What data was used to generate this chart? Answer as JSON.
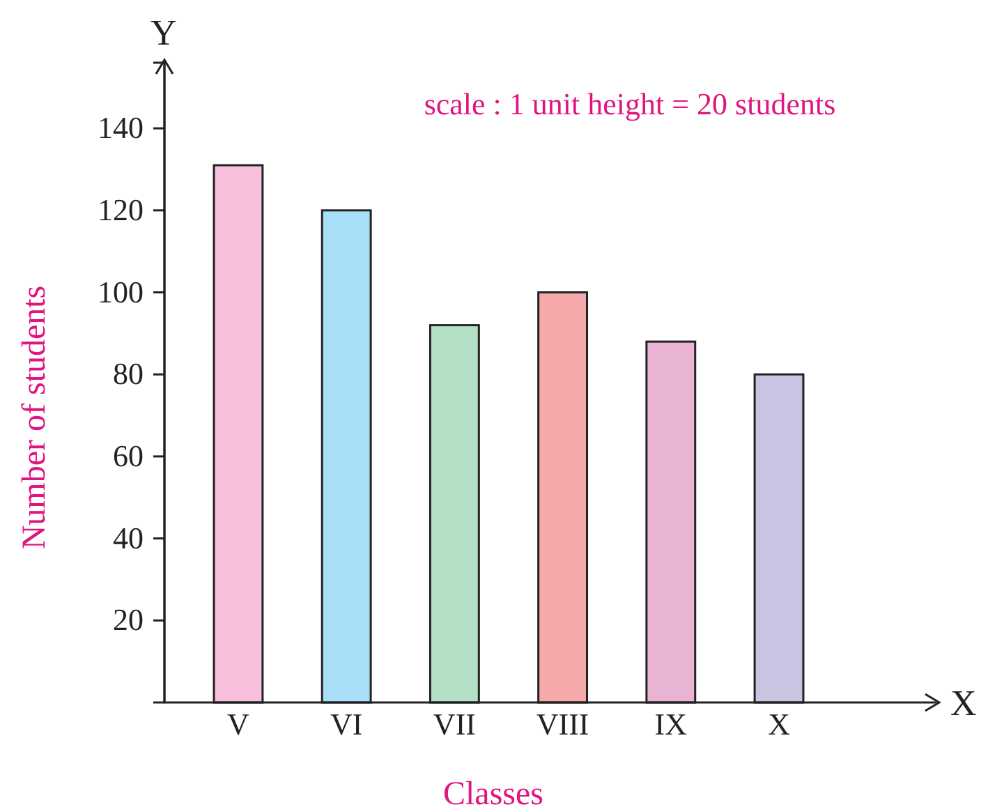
{
  "chart_data": {
    "type": "bar",
    "xlabel": "Classes",
    "ylabel": "Number of students",
    "categories": [
      "V",
      "VI",
      "VII",
      "VIII",
      "IX",
      "X"
    ],
    "values": [
      131,
      120,
      92,
      100,
      88,
      80
    ],
    "colors": [
      "#f7c0dc",
      "#a8def8",
      "#b3dfc4",
      "#f5a9ab",
      "#e9b4d4",
      "#c8c4e2"
    ],
    "ylim": [
      0,
      156
    ],
    "yticks": [
      20,
      40,
      60,
      80,
      100,
      120,
      140
    ],
    "grid": false,
    "annotations": [
      "scale : 1 unit height = 20 students",
      "X",
      "Y"
    ]
  }
}
